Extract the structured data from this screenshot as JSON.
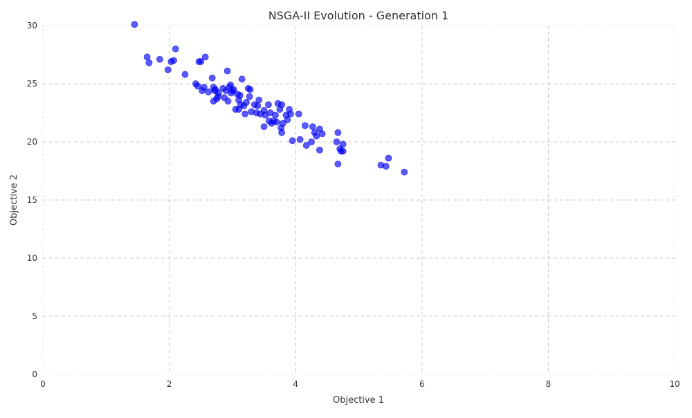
{
  "chart_data": {
    "type": "scatter",
    "title": "NSGA-II Evolution - Generation 1",
    "xlabel": "Objective 1",
    "ylabel": "Objective 2",
    "xlim": [
      0,
      10
    ],
    "ylim": [
      0,
      30
    ],
    "xticks": [
      0,
      2,
      4,
      6,
      8,
      10
    ],
    "yticks": [
      0,
      5,
      10,
      15,
      20,
      25,
      30
    ],
    "grid": true,
    "marker_color": "#0000ff",
    "marker_opacity": 0.65,
    "series": [
      {
        "x": [
          1.45,
          1.65,
          1.68,
          1.85,
          1.98,
          2.03,
          2.07,
          2.1,
          2.25,
          2.42,
          2.45,
          2.47,
          2.5,
          2.52,
          2.55,
          2.57,
          2.62,
          2.68,
          2.7,
          2.7,
          2.72,
          2.73,
          2.75,
          2.77,
          2.78,
          2.85,
          2.87,
          2.9,
          2.92,
          2.93,
          2.95,
          2.97,
          2.98,
          3.0,
          3.02,
          3.05,
          3.08,
          3.1,
          3.1,
          3.12,
          3.13,
          3.15,
          3.18,
          3.2,
          3.22,
          3.25,
          3.27,
          3.28,
          3.3,
          3.35,
          3.38,
          3.4,
          3.42,
          3.44,
          3.5,
          3.5,
          3.52,
          3.57,
          3.58,
          3.6,
          3.62,
          3.65,
          3.68,
          3.7,
          3.72,
          3.75,
          3.77,
          3.78,
          3.78,
          3.8,
          3.85,
          3.87,
          3.9,
          3.92,
          3.95,
          4.05,
          4.07,
          4.15,
          4.17,
          4.25,
          4.27,
          4.3,
          4.33,
          4.38,
          4.38,
          4.42,
          4.65,
          4.67,
          4.67,
          4.7,
          4.72,
          4.75,
          4.75,
          5.35,
          5.43,
          5.47,
          5.72
        ],
        "y": [
          30.1,
          27.3,
          26.8,
          27.1,
          26.2,
          26.9,
          27.0,
          28.0,
          25.8,
          25.0,
          24.8,
          26.9,
          26.9,
          24.4,
          24.7,
          27.3,
          24.3,
          25.5,
          23.5,
          24.7,
          24.4,
          24.5,
          23.7,
          23.9,
          24.2,
          24.6,
          23.8,
          24.4,
          26.1,
          23.5,
          24.7,
          24.9,
          24.2,
          24.4,
          24.5,
          22.8,
          24.1,
          22.8,
          23.6,
          24.0,
          23.2,
          25.4,
          23.1,
          22.4,
          23.4,
          24.6,
          23.9,
          24.5,
          22.6,
          23.2,
          22.5,
          23.1,
          23.6,
          22.4,
          22.7,
          21.3,
          22.3,
          23.2,
          21.8,
          22.5,
          21.6,
          21.8,
          22.3,
          21.7,
          23.3,
          22.8,
          21.2,
          20.8,
          23.2,
          21.6,
          22.3,
          21.9,
          22.8,
          22.4,
          20.1,
          22.4,
          20.2,
          21.4,
          19.7,
          20.0,
          21.3,
          20.8,
          20.5,
          21.1,
          19.3,
          20.7,
          20.0,
          20.8,
          18.1,
          19.4,
          19.2,
          19.8,
          19.2,
          18.0,
          17.9,
          18.6,
          17.4
        ]
      }
    ]
  }
}
